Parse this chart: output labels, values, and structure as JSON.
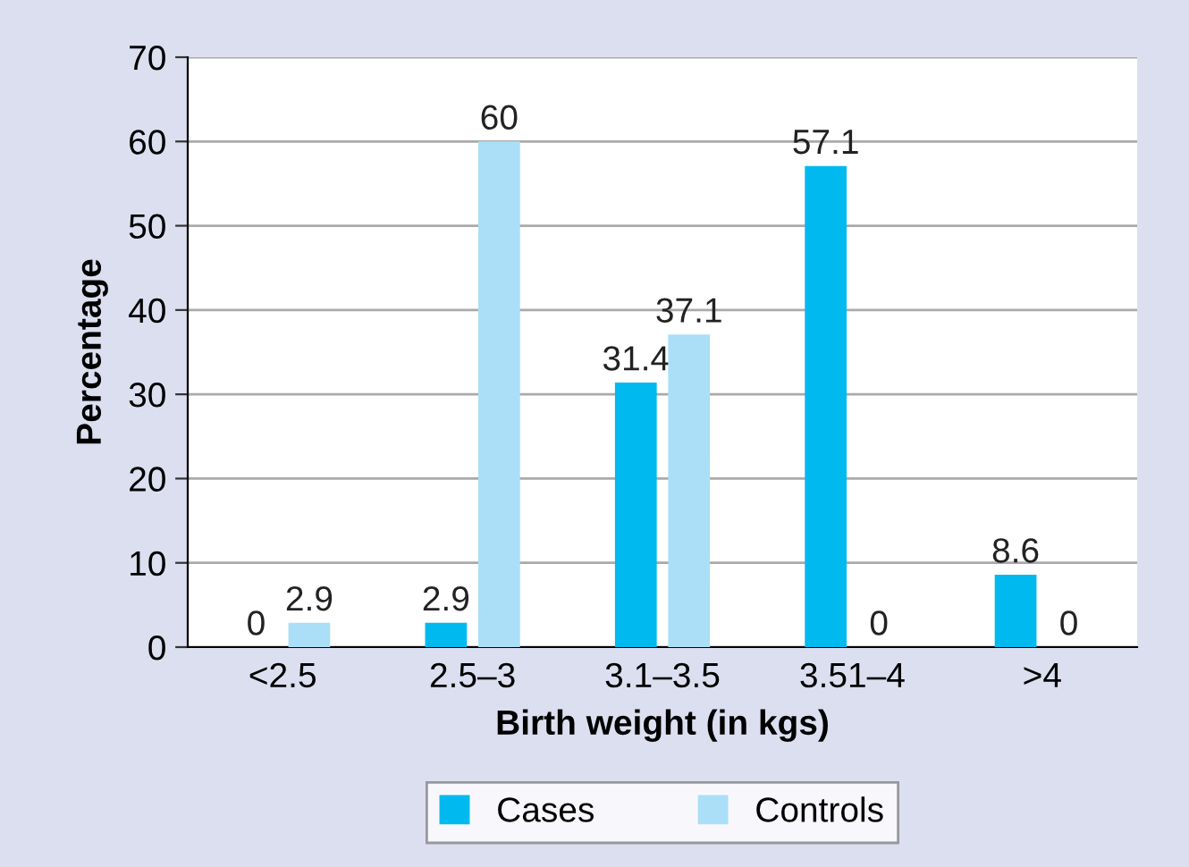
{
  "chart_data": {
    "type": "bar",
    "xlabel": "Birth weight (in kgs)",
    "ylabel": "Percentage",
    "categories": [
      "<2.5",
      "2.5–3",
      "3.1–3.5",
      "3.51–4",
      ">4"
    ],
    "series": [
      {
        "name": "Cases",
        "color": "#00b9ef",
        "values": [
          0,
          2.9,
          31.4,
          57.1,
          8.6
        ]
      },
      {
        "name": "Controls",
        "color": "#aadff7",
        "values": [
          2.9,
          60,
          37.1,
          0,
          0
        ]
      }
    ],
    "ylim": [
      0,
      70
    ],
    "yticks": [
      0,
      10,
      20,
      30,
      40,
      50,
      60,
      70
    ],
    "grid": "y",
    "legend": "bottom",
    "data_labels": true
  }
}
